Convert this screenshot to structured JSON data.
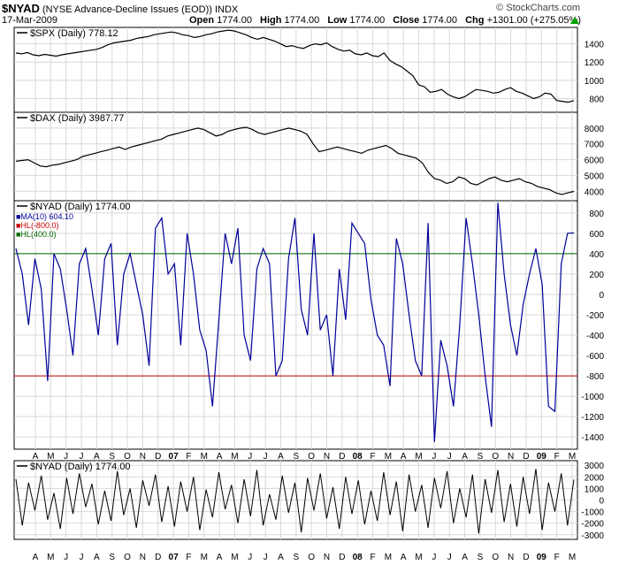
{
  "header": {
    "symbol": "$NYAD",
    "description": "(NYSE Advance-Decline Issues (EOD))",
    "exchange": "INDX",
    "copyright": "© StockCharts.com",
    "date": "17-Mar-2009",
    "quote": {
      "open_label": "Open",
      "open": "1774.00",
      "high_label": "High",
      "high": "1774.00",
      "low_label": "Low",
      "low": "1774.00",
      "close_label": "Close",
      "close": "1774.00",
      "chg_label": "Chg",
      "chg": "+1301.00 (+275.05%)"
    }
  },
  "colors": {
    "price": "#000000",
    "ma": "#000099",
    "hl_low": "#cc0000",
    "hl_high": "#006600",
    "grid": "#d8d8d8",
    "up_arrow": "#00a000"
  },
  "chart_data": [
    {
      "type": "line",
      "panel": "spx",
      "label": "$SPX (Daily) 778.12",
      "series": [
        {
          "name": "$SPX (Daily)",
          "values": [
            1300,
            1290,
            1305,
            1280,
            1270,
            1285,
            1275,
            1265,
            1280,
            1290,
            1300,
            1310,
            1320,
            1330,
            1340,
            1360,
            1390,
            1410,
            1420,
            1430,
            1440,
            1460,
            1470,
            1480,
            1500,
            1510,
            1520,
            1530,
            1520,
            1500,
            1490,
            1470,
            1480,
            1500,
            1510,
            1530,
            1540,
            1550,
            1540,
            1520,
            1500,
            1470,
            1450,
            1470,
            1450,
            1430,
            1400,
            1370,
            1380,
            1360,
            1350,
            1380,
            1400,
            1390,
            1410,
            1370,
            1340,
            1320,
            1330,
            1290,
            1280,
            1300,
            1270,
            1260,
            1300,
            1220,
            1180,
            1150,
            1100,
            1050,
            950,
            930,
            870,
            880,
            900,
            850,
            820,
            800,
            820,
            860,
            900,
            890,
            880,
            860,
            870,
            900,
            920,
            880,
            860,
            830,
            800,
            820,
            860,
            850,
            780,
            770,
            760,
            778
          ]
        }
      ],
      "x_range": [
        "2006-03",
        "2009-03-17"
      ],
      "ylim": [
        650,
        1580
      ],
      "yticks": [
        800,
        1000,
        1200,
        1400
      ]
    },
    {
      "type": "line",
      "panel": "dax",
      "label": "$DAX (Daily) 3987.77",
      "series": [
        {
          "name": "$DAX (Daily)",
          "values": [
            5900,
            5950,
            6000,
            5800,
            5600,
            5550,
            5650,
            5700,
            5800,
            5900,
            6000,
            6200,
            6300,
            6400,
            6500,
            6600,
            6700,
            6800,
            6650,
            6800,
            6900,
            7000,
            7100,
            7200,
            7300,
            7500,
            7600,
            7700,
            7800,
            7900,
            8000,
            7900,
            7700,
            7500,
            7600,
            7800,
            7900,
            8000,
            8050,
            7900,
            7700,
            7600,
            7700,
            7800,
            7900,
            8000,
            7900,
            7800,
            7600,
            7000,
            6500,
            6600,
            6700,
            6800,
            6700,
            6600,
            6500,
            6400,
            6600,
            6700,
            6800,
            6900,
            6700,
            6400,
            6300,
            6200,
            6100,
            5800,
            5200,
            4800,
            4700,
            4500,
            4600,
            4900,
            4800,
            4500,
            4400,
            4600,
            4800,
            4900,
            4700,
            4600,
            4700,
            4800,
            4600,
            4500,
            4300,
            4200,
            4100,
            3900,
            3800,
            3900,
            3987
          ]
        }
      ],
      "x_range": [
        "2006-03",
        "2009-03-17"
      ],
      "ylim": [
        3400,
        9000
      ],
      "yticks": [
        4000,
        5000,
        6000,
        7000,
        8000
      ]
    },
    {
      "type": "line",
      "panel": "nyad-ma",
      "label": "$NYAD (Daily) 1774.00",
      "series": [
        {
          "name": "MA(10) 604.10",
          "values": [
            450,
            200,
            -300,
            350,
            50,
            -850,
            400,
            250,
            -150,
            -600,
            300,
            450,
            50,
            -400,
            350,
            500,
            -500,
            200,
            400,
            100,
            -200,
            -700,
            650,
            750,
            200,
            300,
            -500,
            600,
            200,
            -350,
            -550,
            -1100,
            -250,
            600,
            300,
            650,
            -400,
            -650,
            250,
            450,
            300,
            -800,
            -650,
            350,
            750,
            -150,
            -400,
            600,
            -350,
            -200,
            -800,
            250,
            -250,
            700,
            600,
            500,
            -50,
            -400,
            -500,
            -900,
            550,
            300,
            -200,
            -650,
            -800,
            700,
            -1450,
            -450,
            -700,
            -1100,
            -300,
            750,
            300,
            -200,
            -800,
            -1300,
            900,
            200,
            -300,
            -600,
            -100,
            200,
            450,
            100,
            -1100,
            -1150,
            300,
            600,
            604
          ]
        }
      ],
      "reference_lines": [
        {
          "name": "HL(-800.0)",
          "value": -800
        },
        {
          "name": "HL(400.0)",
          "value": 400
        }
      ],
      "ylim": [
        -1520,
        920
      ],
      "yticks": [
        -1400,
        -1200,
        -1000,
        -800,
        -600,
        -400,
        -200,
        0,
        200,
        400,
        600,
        800
      ]
    },
    {
      "type": "line",
      "panel": "nyad",
      "label": "$NYAD (Daily) 1774.00",
      "series": [
        {
          "name": "$NYAD (Daily)",
          "values": [
            1800,
            -2200,
            1500,
            -900,
            2100,
            -1700,
            600,
            -2500,
            1900,
            -1200,
            2300,
            -600,
            1400,
            -2100,
            800,
            -1800,
            2500,
            -1300,
            1000,
            -2400,
            1700,
            -500,
            2200,
            -1900,
            1200,
            -2300,
            1600,
            -1000,
            2000,
            -2600,
            900,
            -1500,
            2400,
            -800,
            1300,
            -2000,
            1800,
            -1400,
            2600,
            -2200,
            500,
            -1700,
            2100,
            -1100,
            1500,
            -2800,
            1900,
            -900,
            2300,
            -1600,
            1100,
            -2500,
            2000,
            -1200,
            1700,
            -2100,
            800,
            -1800,
            2400,
            -1300,
            1600,
            -2700,
            2200,
            -1000,
            1300,
            -2400,
            1900,
            -700,
            2500,
            -2000,
            1000,
            -1500,
            2200,
            -2900,
            1800,
            -1100,
            2600,
            -1900,
            1400,
            -2300,
            2000,
            -1200,
            2700,
            -2600,
            1500,
            -1000,
            2300,
            -2200,
            1774
          ]
        }
      ],
      "ylim": [
        -3400,
        3400
      ],
      "yticks": [
        -3000,
        -2000,
        -1000,
        0,
        1000,
        2000,
        3000
      ]
    }
  ],
  "x_axis": {
    "labels": [
      "A",
      "M",
      "J",
      "J",
      "A",
      "S",
      "O",
      "N",
      "D",
      "07",
      "F",
      "M",
      "A",
      "M",
      "J",
      "J",
      "A",
      "S",
      "O",
      "N",
      "D",
      "08",
      "F",
      "M",
      "A",
      "M",
      "J",
      "J",
      "A",
      "S",
      "O",
      "N",
      "D",
      "09",
      "F",
      "M"
    ],
    "bold_labels": [
      "07",
      "08",
      "09"
    ]
  }
}
